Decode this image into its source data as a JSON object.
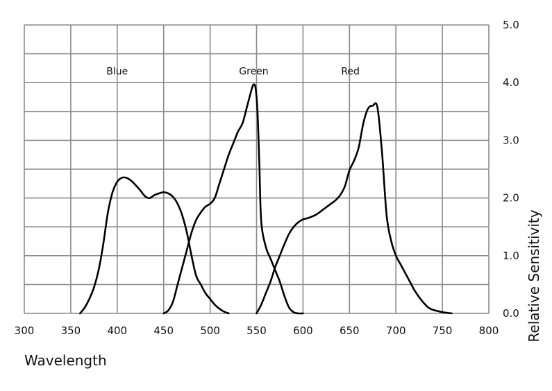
{
  "chart_data": {
    "type": "line",
    "xlabel": "Wavelength",
    "ylabel": "Relative Sensitivity",
    "xlim": [
      300,
      800
    ],
    "ylim": [
      0,
      5
    ],
    "x_ticks": [
      "300",
      "350",
      "400",
      "450",
      "500",
      "550",
      "600",
      "650",
      "700",
      "750",
      "800"
    ],
    "y_ticks": [
      "0.0",
      "1.0",
      "2.0",
      "3.0",
      "4.0",
      "5.0"
    ],
    "y_axis_side": "right",
    "grid": true,
    "legend": "none",
    "series": [
      {
        "name": "Blue",
        "label_at": [
          400,
          4.2
        ],
        "x": [
          360,
          365,
          370,
          375,
          380,
          385,
          390,
          395,
          400,
          405,
          410,
          415,
          420,
          425,
          430,
          435,
          440,
          445,
          450,
          455,
          460,
          465,
          470,
          475,
          480,
          485,
          490,
          495,
          500,
          505,
          510,
          515,
          520
        ],
        "y": [
          0.0,
          0.1,
          0.25,
          0.45,
          0.75,
          1.2,
          1.75,
          2.1,
          2.28,
          2.35,
          2.35,
          2.3,
          2.22,
          2.13,
          2.03,
          2.0,
          2.05,
          2.08,
          2.1,
          2.08,
          2.02,
          1.9,
          1.7,
          1.4,
          1.0,
          0.65,
          0.5,
          0.35,
          0.25,
          0.15,
          0.08,
          0.03,
          0.0
        ]
      },
      {
        "name": "Green",
        "label_at": [
          547,
          4.2
        ],
        "x": [
          450,
          455,
          460,
          465,
          470,
          475,
          480,
          485,
          490,
          495,
          500,
          505,
          510,
          515,
          520,
          525,
          530,
          535,
          540,
          545,
          547,
          549,
          551,
          553,
          555,
          560,
          565,
          570,
          575,
          580,
          585,
          590,
          595,
          600
        ],
        "y": [
          0.0,
          0.05,
          0.2,
          0.5,
          0.8,
          1.1,
          1.4,
          1.62,
          1.75,
          1.85,
          1.9,
          2.0,
          2.25,
          2.5,
          2.75,
          2.95,
          3.15,
          3.3,
          3.6,
          3.9,
          3.97,
          3.9,
          3.5,
          2.6,
          1.6,
          1.15,
          0.95,
          0.75,
          0.55,
          0.3,
          0.1,
          0.02,
          0.0,
          0.0
        ]
      },
      {
        "name": "Red",
        "label_at": [
          651,
          4.2
        ],
        "x": [
          550,
          555,
          560,
          565,
          570,
          575,
          580,
          585,
          590,
          595,
          600,
          605,
          610,
          615,
          620,
          625,
          630,
          635,
          640,
          645,
          650,
          655,
          660,
          665,
          670,
          675,
          680,
          685,
          690,
          695,
          700,
          705,
          710,
          715,
          720,
          725,
          730,
          735,
          740,
          745,
          750,
          755,
          760
        ],
        "y": [
          0.0,
          0.15,
          0.35,
          0.55,
          0.8,
          1.0,
          1.2,
          1.38,
          1.5,
          1.58,
          1.63,
          1.65,
          1.68,
          1.72,
          1.78,
          1.84,
          1.9,
          1.96,
          2.05,
          2.2,
          2.48,
          2.65,
          2.88,
          3.3,
          3.55,
          3.6,
          3.58,
          2.8,
          1.7,
          1.25,
          1.0,
          0.85,
          0.7,
          0.55,
          0.4,
          0.28,
          0.18,
          0.1,
          0.06,
          0.04,
          0.02,
          0.01,
          0.0
        ]
      }
    ]
  }
}
